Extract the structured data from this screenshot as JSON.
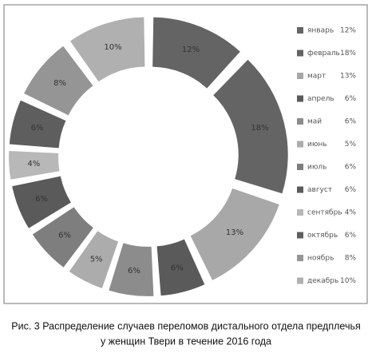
{
  "chart_data": {
    "type": "donut",
    "categories": [
      "январь",
      "февраль",
      "март",
      "апрель",
      "май",
      "июнь",
      "июль",
      "август",
      "сентябрь",
      "октябрь",
      "ноябрь",
      "декабрь"
    ],
    "values": [
      12,
      18,
      13,
      6,
      6,
      5,
      6,
      6,
      4,
      6,
      8,
      10
    ],
    "value_labels": [
      "12%",
      "18%",
      "13%",
      "6%",
      "6%",
      "5%",
      "6%",
      "6%",
      "4%",
      "6%",
      "8%",
      "10%"
    ],
    "colors": [
      "#646464",
      "#646464",
      "#a8a8a8",
      "#5a5a5a",
      "#8c8c8c",
      "#acacac",
      "#7e7e7e",
      "#5a5a5a",
      "#b8b8b8",
      "#5e5e5e",
      "#959595",
      "#b0b0b0"
    ],
    "legend": "right",
    "caption": [
      "Рис. 3 Распределение случаев переломов дистального отдела предплечья",
      "у женщин Твери в течение 2016 года"
    ]
  }
}
